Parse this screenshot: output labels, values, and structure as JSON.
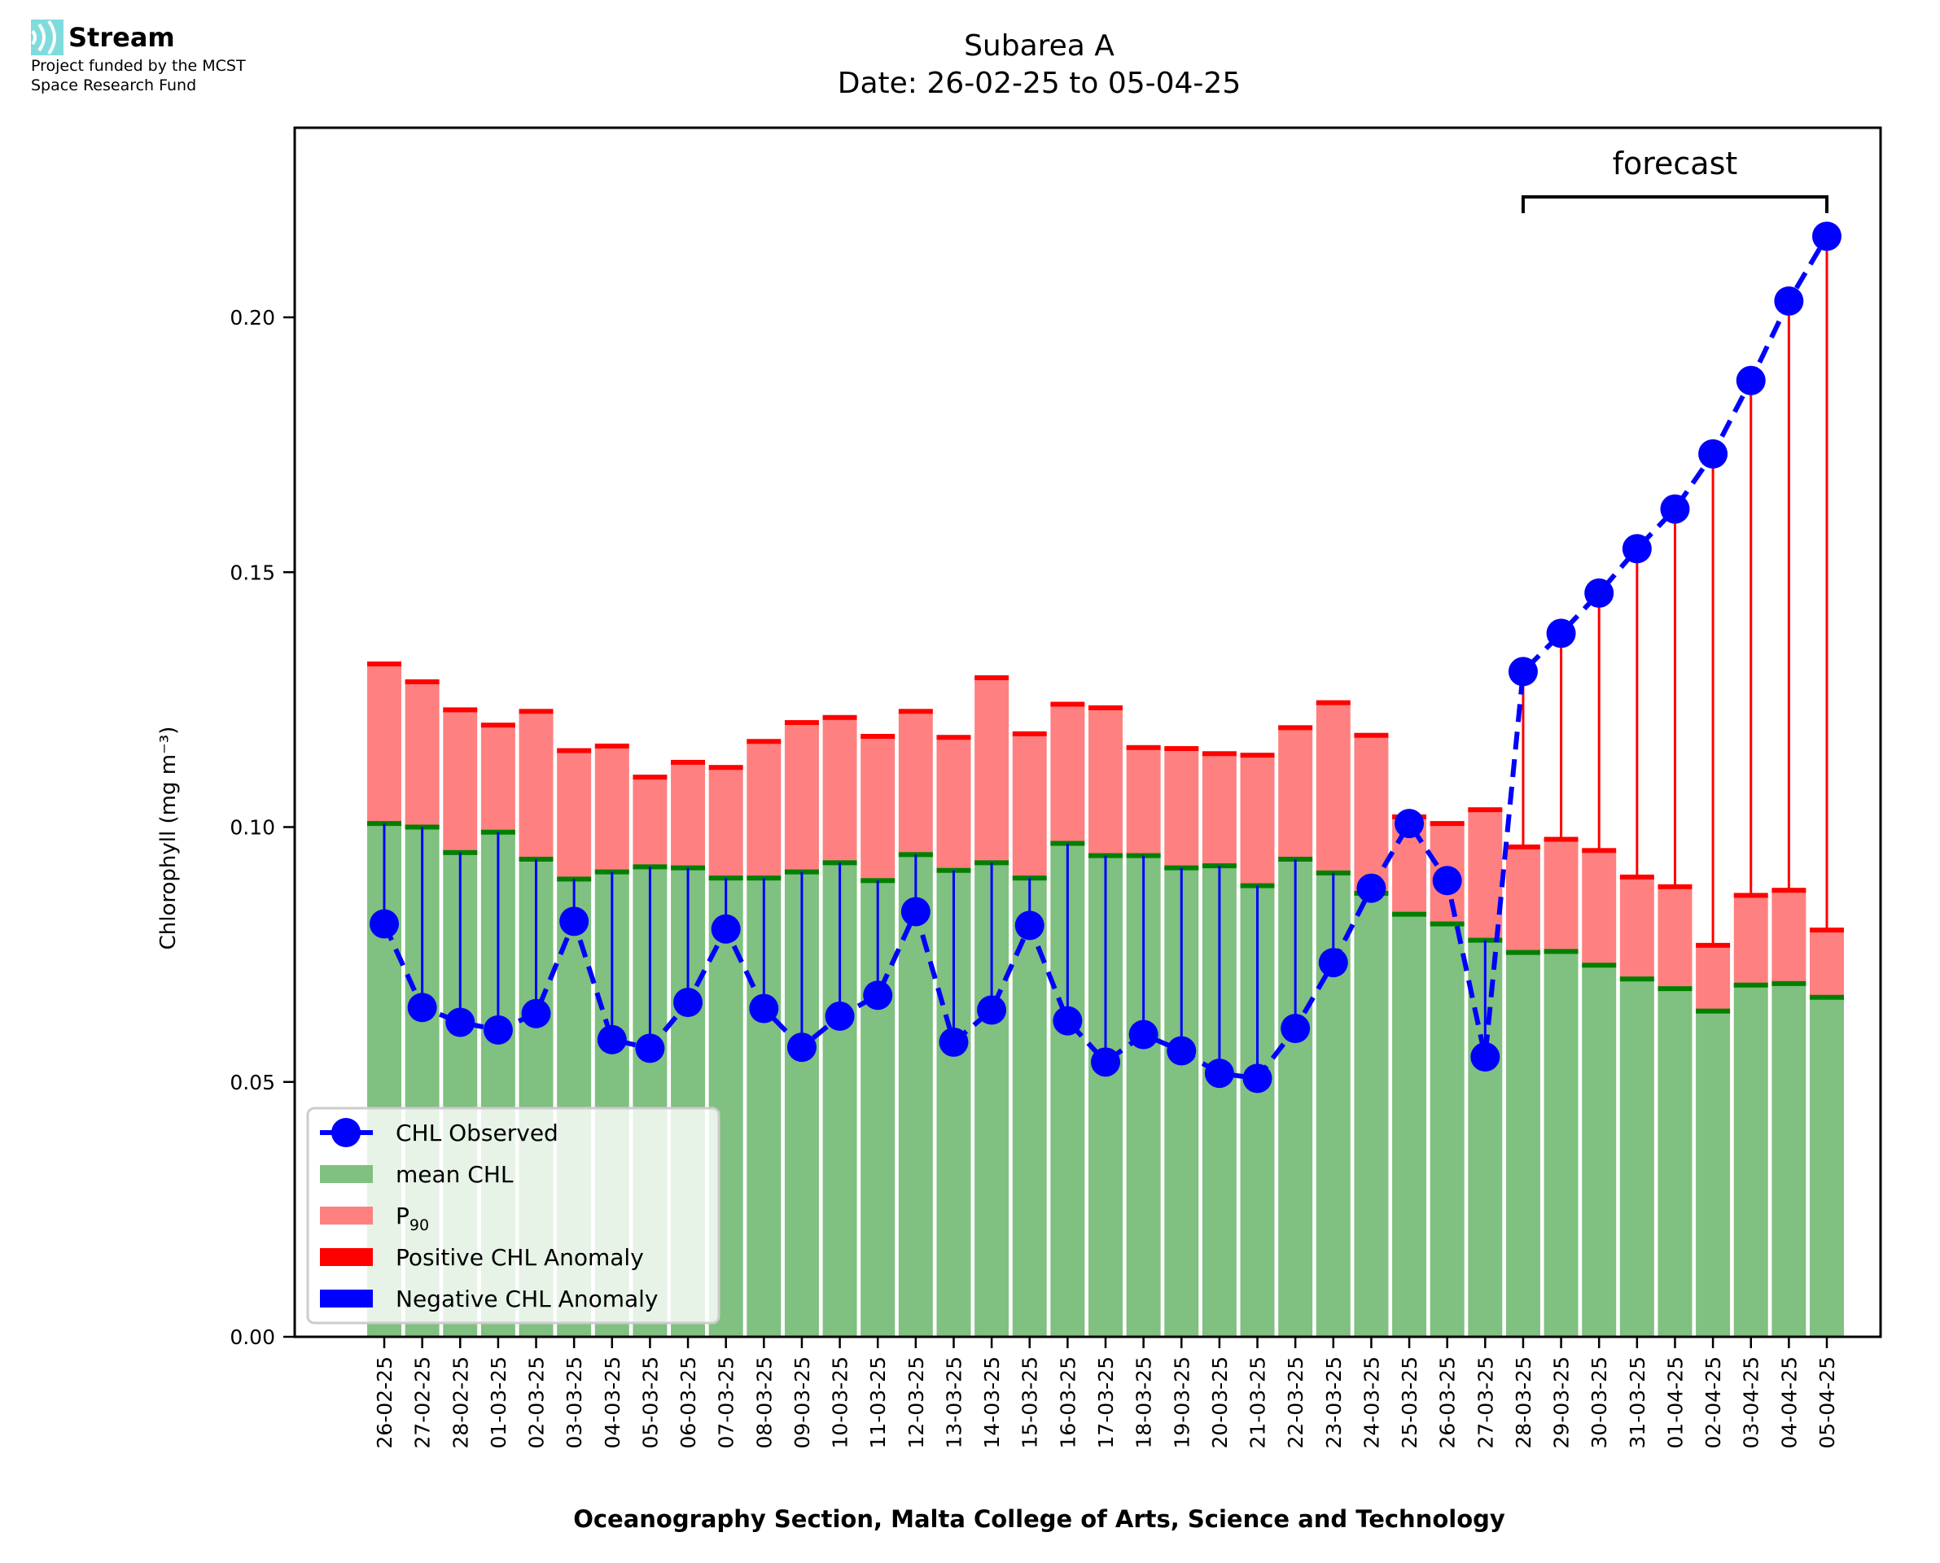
{
  "logo": {
    "icon": "stream-waves-icon",
    "name": "Stream",
    "subtitle_line1": "Project funded by the MCST",
    "subtitle_line2": "Space Research Fund",
    "color": "#7fdcdc"
  },
  "chart_data": {
    "type": "bar",
    "title": "Subarea A",
    "subtitle": "Date: 26-02-25 to 05-04-25",
    "xlabel": "Oceanography Section, Malta College of Arts, Science and Technology",
    "ylabel": "Chlorophyll (mg m⁻³)",
    "ylim": [
      0,
      0.237
    ],
    "yticks": [
      0.0,
      0.05,
      0.1,
      0.15,
      0.2
    ],
    "ytick_labels": [
      "0.00",
      "0.05",
      "0.10",
      "0.15",
      "0.20"
    ],
    "grid": false,
    "legend_position": "lower-left",
    "annotation": {
      "text": "forecast",
      "from_category": "28-03-25",
      "to_category": "05-04-25"
    },
    "colors": {
      "mean": "#80c080",
      "mean_edge": "#008000",
      "p90": "#ff8080",
      "p90_edge": "#ff0000",
      "positive_anomaly": "#ff0000",
      "negative_anomaly": "#0000ff",
      "observed": "#0000ff"
    },
    "legend": [
      {
        "label": "CHL Observed",
        "kind": "line-marker",
        "color": "#0000ff"
      },
      {
        "label": "mean CHL",
        "kind": "patch",
        "color": "#80c080"
      },
      {
        "label": "P",
        "sub": "90",
        "kind": "patch",
        "color": "#ff8080"
      },
      {
        "label": "Positive CHL Anomaly",
        "kind": "patch",
        "color": "#ff0000"
      },
      {
        "label": "Negative CHL Anomaly",
        "kind": "patch",
        "color": "#0000ff"
      }
    ],
    "categories": [
      "26-02-25",
      "27-02-25",
      "28-02-25",
      "01-03-25",
      "02-03-25",
      "03-03-25",
      "04-03-25",
      "05-03-25",
      "06-03-25",
      "07-03-25",
      "08-03-25",
      "09-03-25",
      "10-03-25",
      "11-03-25",
      "12-03-25",
      "13-03-25",
      "14-03-25",
      "15-03-25",
      "16-03-25",
      "17-03-25",
      "18-03-25",
      "19-03-25",
      "20-03-25",
      "21-03-25",
      "22-03-25",
      "23-03-25",
      "24-03-25",
      "25-03-25",
      "26-03-25",
      "27-03-25",
      "28-03-25",
      "29-03-25",
      "30-03-25",
      "31-03-25",
      "01-04-25",
      "02-04-25",
      "03-04-25",
      "04-04-25",
      "05-04-25"
    ],
    "series": [
      {
        "name": "mean CHL",
        "values": [
          0.1007,
          0.1,
          0.095,
          0.099,
          0.0937,
          0.0898,
          0.0912,
          0.0922,
          0.092,
          0.09,
          0.09,
          0.0912,
          0.093,
          0.0895,
          0.0946,
          0.0915,
          0.093,
          0.09,
          0.0968,
          0.0944,
          0.0944,
          0.092,
          0.0924,
          0.0885,
          0.0937,
          0.091,
          0.087,
          0.0829,
          0.081,
          0.0778,
          0.0754,
          0.0756,
          0.0729,
          0.0702,
          0.0683,
          0.0639,
          0.069,
          0.0693,
          0.0666
        ]
      },
      {
        "name": "P90",
        "values": [
          0.132,
          0.1285,
          0.123,
          0.12,
          0.1227,
          0.115,
          0.1159,
          0.1098,
          0.1127,
          0.1117,
          0.1168,
          0.1205,
          0.1215,
          0.1178,
          0.1227,
          0.1176,
          0.1293,
          0.1183,
          0.1241,
          0.1234,
          0.1156,
          0.1154,
          0.1144,
          0.1141,
          0.1195,
          0.1244,
          0.118,
          0.102,
          0.1007,
          0.1034,
          0.0961,
          0.0976,
          0.0954,
          0.0902,
          0.0883,
          0.0768,
          0.0866,
          0.0876,
          0.0798
        ]
      },
      {
        "name": "CHL Observed",
        "values": [
          0.081,
          0.0646,
          0.0617,
          0.0602,
          0.0634,
          0.0815,
          0.0583,
          0.0566,
          0.0656,
          0.08,
          0.0644,
          0.0568,
          0.0629,
          0.067,
          0.0834,
          0.0578,
          0.0641,
          0.0807,
          0.062,
          0.0539,
          0.0593,
          0.0561,
          0.0517,
          0.0507,
          0.0605,
          0.0734,
          0.088,
          0.1007,
          0.0895,
          0.0549,
          0.1305,
          0.138,
          0.1459,
          0.1546,
          0.1624,
          0.1732,
          0.1876,
          0.2032,
          0.2159
        ]
      }
    ]
  }
}
